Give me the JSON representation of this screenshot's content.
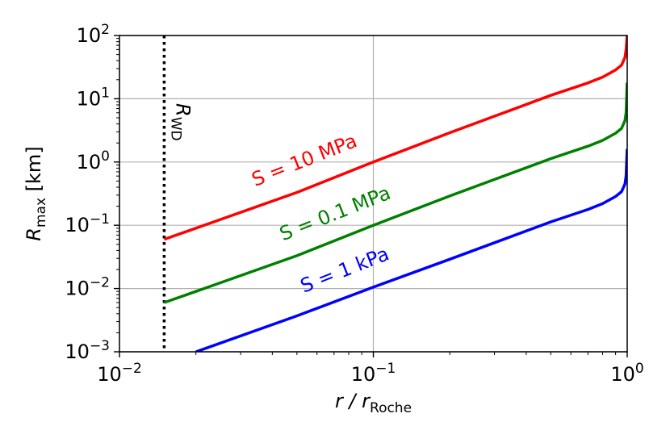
{
  "chart_data": {
    "type": "line",
    "x_scale": "log",
    "y_scale": "log",
    "xlim": [
      0.01,
      1
    ],
    "ylim": [
      0.001,
      100
    ],
    "grid": true,
    "xlabel": {
      "main": "r / r",
      "sub": "Roche"
    },
    "ylabel": {
      "main": "R",
      "sub": "max",
      "suffix": " [km]"
    },
    "x_ticks": [
      {
        "value": 0.01,
        "base": "10",
        "exp": "−2"
      },
      {
        "value": 0.1,
        "base": "10",
        "exp": "−1"
      },
      {
        "value": 1,
        "base": "10",
        "exp": "0"
      }
    ],
    "y_ticks": [
      {
        "value": 0.001,
        "base": "10",
        "exp": "−3"
      },
      {
        "value": 0.01,
        "base": "10",
        "exp": "−2"
      },
      {
        "value": 0.1,
        "base": "10",
        "exp": "−1"
      },
      {
        "value": 1,
        "base": "10",
        "exp": "0"
      },
      {
        "value": 10,
        "base": "10",
        "exp": "1"
      },
      {
        "value": 100,
        "base": "10",
        "exp": "2"
      }
    ],
    "vline": {
      "x": 0.015,
      "style": "dotted",
      "color": "#000000",
      "label": {
        "main": "R",
        "sub": "WD"
      }
    },
    "series": [
      {
        "name": "S = 10 MPa",
        "color": "#ff0000",
        "x": [
          0.015,
          0.02,
          0.05,
          0.1,
          0.2,
          0.3,
          0.5,
          0.7,
          0.8,
          0.9,
          0.95,
          0.98,
          0.99,
          0.999
        ],
        "y": [
          0.06,
          0.09,
          0.33,
          1.0,
          2.9,
          5.3,
          11.3,
          17.8,
          22.0,
          28.5,
          34.0,
          45.0,
          60.0,
          100.0
        ]
      },
      {
        "name": "S = 0.1 MPa",
        "color": "#008000",
        "x": [
          0.015,
          0.02,
          0.05,
          0.1,
          0.2,
          0.3,
          0.5,
          0.7,
          0.8,
          0.9,
          0.95,
          0.98,
          0.99,
          0.999
        ],
        "y": [
          0.006,
          0.009,
          0.033,
          0.1,
          0.29,
          0.53,
          1.13,
          1.78,
          2.2,
          2.85,
          3.4,
          4.5,
          6.0,
          18.0
        ]
      },
      {
        "name": "S = 1 kPa",
        "color": "#0000ff",
        "x": [
          0.02,
          0.05,
          0.1,
          0.2,
          0.3,
          0.5,
          0.7,
          0.8,
          0.9,
          0.95,
          0.98,
          0.99,
          0.999
        ],
        "y": [
          0.001,
          0.0037,
          0.0105,
          0.029,
          0.053,
          0.113,
          0.178,
          0.22,
          0.285,
          0.34,
          0.45,
          0.6,
          1.6
        ]
      }
    ]
  }
}
